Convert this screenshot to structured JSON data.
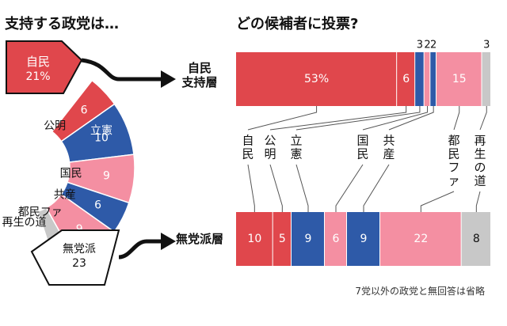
{
  "left_title": "支持する政党は…",
  "right_title": "どの候補者に投票?",
  "footnote": "7党以外の政党と無回答は省略",
  "colors": {
    "ldp": "#e0474c",
    "komei": "#e0474c",
    "blue": "#2e5aa8",
    "pink": "#f48fa2",
    "gray": "#c8c8c8",
    "outline": "#111111"
  },
  "chart_data": [
    {
      "type": "pie",
      "title": "支持する政党は…",
      "slices": [
        {
          "label": "自民",
          "value": 21,
          "value_text": "21%",
          "color": "#e0474c"
        },
        {
          "label": "公明",
          "value": 6,
          "value_text": "6",
          "color": "#e0474c"
        },
        {
          "label": "立憲",
          "value": 10,
          "value_text": "10",
          "color": "#2e5aa8"
        },
        {
          "label": "国民",
          "value": 9,
          "value_text": "9",
          "color": "#f48fa2"
        },
        {
          "label": "共産",
          "value": 6,
          "value_text": "6",
          "color": "#2e5aa8"
        },
        {
          "label": "都民ファ",
          "value": 9,
          "value_text": "9",
          "color": "#f48fa2"
        },
        {
          "label": "再生の道",
          "value": 4,
          "value_text": "4",
          "color": "#c8c8c8"
        },
        {
          "label": "無党派",
          "value": 23,
          "value_text": "23",
          "color": "#ffffff"
        }
      ]
    },
    {
      "type": "bar",
      "orientation": "horizontal-stacked",
      "title": "どの候補者に投票?",
      "categories": [
        "自民",
        "公明",
        "立憲",
        "国民",
        "共産",
        "都民ファ",
        "再生の道"
      ],
      "rows": [
        {
          "name": "自民\n支持層",
          "values": [
            53,
            6,
            3,
            2,
            2,
            15,
            3
          ],
          "value_text": [
            "53%",
            "6",
            "3",
            "2",
            "2",
            "15",
            "3"
          ]
        },
        {
          "name": "無党派層",
          "values": [
            10,
            5,
            9,
            6,
            9,
            22,
            8
          ],
          "value_text": [
            "10",
            "5",
            "9",
            "6",
            "9",
            "22",
            "8"
          ]
        }
      ],
      "colors": [
        "#e0474c",
        "#e0474c",
        "#2e5aa8",
        "#f48fa2",
        "#2e5aa8",
        "#f48fa2",
        "#c8c8c8"
      ]
    }
  ]
}
